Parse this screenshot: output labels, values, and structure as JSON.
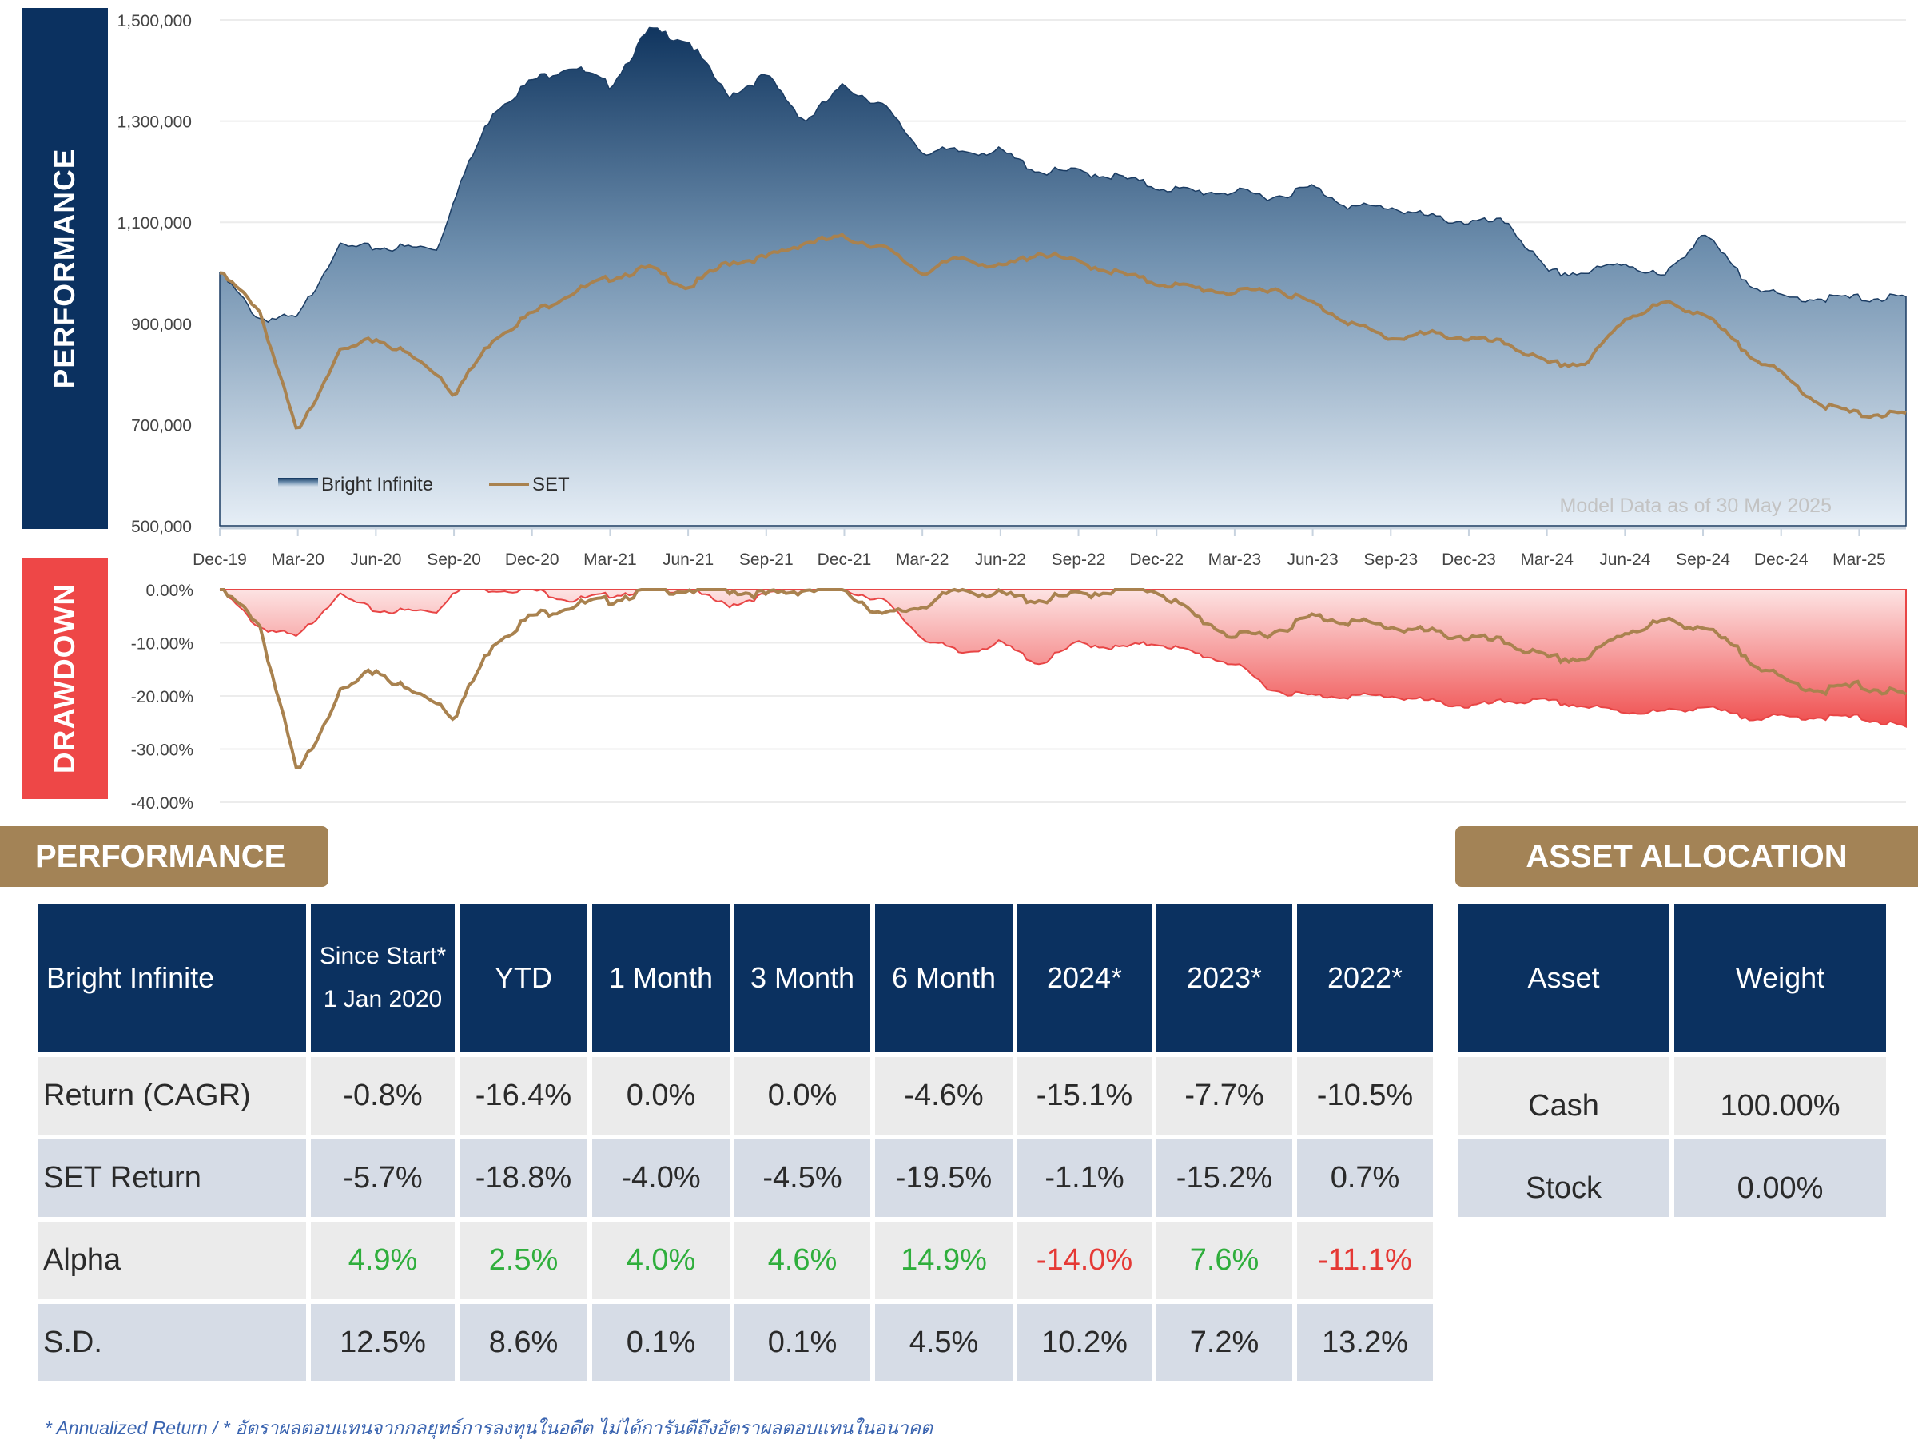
{
  "banners": {
    "performance": "PERFORMANCE",
    "drawdown": "DRAWDOWN"
  },
  "chart_data": [
    {
      "type": "area",
      "title": "PERFORMANCE",
      "ylim": [
        500000,
        1500000
      ],
      "yticks": [
        500000,
        700000,
        900000,
        1100000,
        1300000,
        1500000
      ],
      "ytick_labels": [
        "500,000",
        "700,000",
        "900,000",
        "1,100,000",
        "1,300,000",
        "1,500,000"
      ],
      "xtick_labels": [
        "Dec-19",
        "Mar-20",
        "Jun-20",
        "Sep-20",
        "Dec-20",
        "Mar-21",
        "Jun-21",
        "Sep-21",
        "Dec-21",
        "Mar-22",
        "Jun-22",
        "Sep-22",
        "Dec-22",
        "Mar-23",
        "Jun-23",
        "Sep-23",
        "Dec-23",
        "Mar-24",
        "Jun-24",
        "Sep-24",
        "Dec-24",
        "Mar-25"
      ],
      "annotation": "Model Data as of 30 May 2025",
      "legend": {
        "placement": "bottom-left",
        "entries": [
          "Bright Infinite",
          "SET"
        ]
      },
      "t": [
        0,
        0.5,
        1,
        1.5,
        2,
        2.4,
        2.8,
        3,
        3.5,
        4,
        4.5,
        5,
        5.5,
        6,
        6.5,
        7,
        7.5,
        8,
        8.5,
        9,
        9.5,
        10,
        10.5,
        11,
        11.5,
        12,
        12.5,
        13,
        13.5,
        14,
        14.5,
        15,
        15.5,
        16,
        16.5,
        17,
        17.5,
        18,
        18.5,
        19,
        19.5,
        20,
        20.5,
        21,
        21.6
      ],
      "series": [
        {
          "name": "Bright Infinite",
          "values": [
            1000000,
            910000,
            910000,
            1050000,
            1050000,
            1050000,
            1050000,
            1150000,
            1320000,
            1380000,
            1410000,
            1370000,
            1480000,
            1460000,
            1350000,
            1390000,
            1300000,
            1370000,
            1330000,
            1240000,
            1240000,
            1240000,
            1200000,
            1200000,
            1190000,
            1170000,
            1160000,
            1160000,
            1150000,
            1170000,
            1130000,
            1130000,
            1110000,
            1100000,
            1100000,
            1000000,
            1000000,
            1020000,
            990000,
            1080000,
            990000,
            950000,
            950000,
            950000,
            950000
          ]
        },
        {
          "name": "SET",
          "values": [
            1000000,
            930000,
            680000,
            840000,
            870000,
            840000,
            800000,
            760000,
            870000,
            920000,
            960000,
            990000,
            1010000,
            970000,
            1020000,
            1030000,
            1060000,
            1070000,
            1050000,
            1000000,
            1030000,
            1010000,
            1040000,
            1020000,
            1000000,
            980000,
            970000,
            960000,
            970000,
            940000,
            900000,
            870000,
            880000,
            870000,
            860000,
            820000,
            820000,
            910000,
            940000,
            920000,
            850000,
            800000,
            740000,
            720000,
            720000
          ]
        }
      ]
    },
    {
      "type": "area",
      "title": "DRAWDOWN",
      "ylim": [
        -40,
        0
      ],
      "yticks": [
        0,
        -10,
        -20,
        -30,
        -40
      ],
      "ytick_labels": [
        "0.00%",
        "-10.00%",
        "-20.00%",
        "-30.00%",
        "-40.00%"
      ],
      "t": [
        0,
        0.5,
        1,
        1.5,
        2,
        2.4,
        2.8,
        3,
        3.5,
        4,
        4.5,
        5,
        5.5,
        6,
        6.5,
        7,
        7.5,
        8,
        8.5,
        9,
        9.5,
        10,
        10.5,
        11,
        11.5,
        12,
        12.5,
        13,
        13.5,
        14,
        14.5,
        15,
        15.5,
        16,
        16.5,
        17,
        17.5,
        18,
        18.5,
        19,
        19.5,
        20,
        20.5,
        21,
        21.6
      ],
      "series": [
        {
          "name": "Bright Infinite",
          "values": [
            0,
            -7,
            -9,
            -1,
            -4,
            -4,
            -4,
            0,
            0,
            0,
            -2,
            -1,
            0,
            0,
            -3,
            -1,
            0,
            0,
            -2,
            -9,
            -12,
            -10,
            -14,
            -10,
            -11,
            -10,
            -12,
            -14,
            -19,
            -20,
            -20,
            -20,
            -21,
            -22,
            -21,
            -21,
            -22,
            -23,
            -23,
            -22,
            -24,
            -24,
            -24,
            -24,
            -26
          ]
        },
        {
          "name": "SET",
          "values": [
            0,
            -6,
            -35,
            -20,
            -15,
            -19,
            -21,
            -24,
            -10,
            -5,
            -3,
            -2,
            0,
            0,
            0,
            -1,
            0,
            0,
            -5,
            -3,
            0,
            -1,
            -2,
            -1,
            0,
            0,
            -5,
            -9,
            -8,
            -5,
            -6,
            -7,
            -8,
            -9,
            -10,
            -13,
            -13,
            -8,
            -6,
            -7,
            -12,
            -17,
            -19,
            -18,
            -20
          ]
        }
      ]
    }
  ],
  "performance": {
    "header": "PERFORMANCE",
    "columns": {
      "name": "Bright Infinite",
      "since_top": "Since Start*",
      "since_bottom": "1 Jan 2020",
      "ytd": "YTD",
      "m1": "1 Month",
      "m3": "3 Month",
      "m6": "6 Month",
      "y2024": "2024*",
      "y2023": "2023*",
      "y2022": "2022*"
    },
    "rows": [
      {
        "label": "Return (CAGR)",
        "values": [
          "-0.8%",
          "-16.4%",
          "0.0%",
          "0.0%",
          "-4.6%",
          "-15.1%",
          "-7.7%",
          "-10.5%"
        ]
      },
      {
        "label": "SET Return",
        "values": [
          "-5.7%",
          "-18.8%",
          "-4.0%",
          "-4.5%",
          "-19.5%",
          "-1.1%",
          "-15.2%",
          "0.7%"
        ]
      },
      {
        "label": "Alpha",
        "values": [
          "4.9%",
          "2.5%",
          "4.0%",
          "4.6%",
          "14.9%",
          "-14.0%",
          "7.6%",
          "-11.1%"
        ]
      },
      {
        "label": "S.D.",
        "values": [
          "12.5%",
          "8.6%",
          "0.1%",
          "0.1%",
          "4.5%",
          "10.2%",
          "7.2%",
          "13.2%"
        ]
      }
    ],
    "colors": {
      "positive": "#2fae3c",
      "negative": "#e53935"
    }
  },
  "allocation": {
    "header": "ASSET ALLOCATION",
    "columns": {
      "asset": "Asset",
      "weight": "Weight"
    },
    "rows": [
      {
        "asset": "Cash",
        "weight": "100.00%"
      },
      {
        "asset": "Stock",
        "weight": "0.00%"
      }
    ]
  },
  "footnote": "* Annualized Return  /  * อัตราผลตอบแทนจากกลยุทธ์การลงทุนในอดีต ไม่ได้การันตีถึงอัตราผลตอบแทนในอนาคต"
}
